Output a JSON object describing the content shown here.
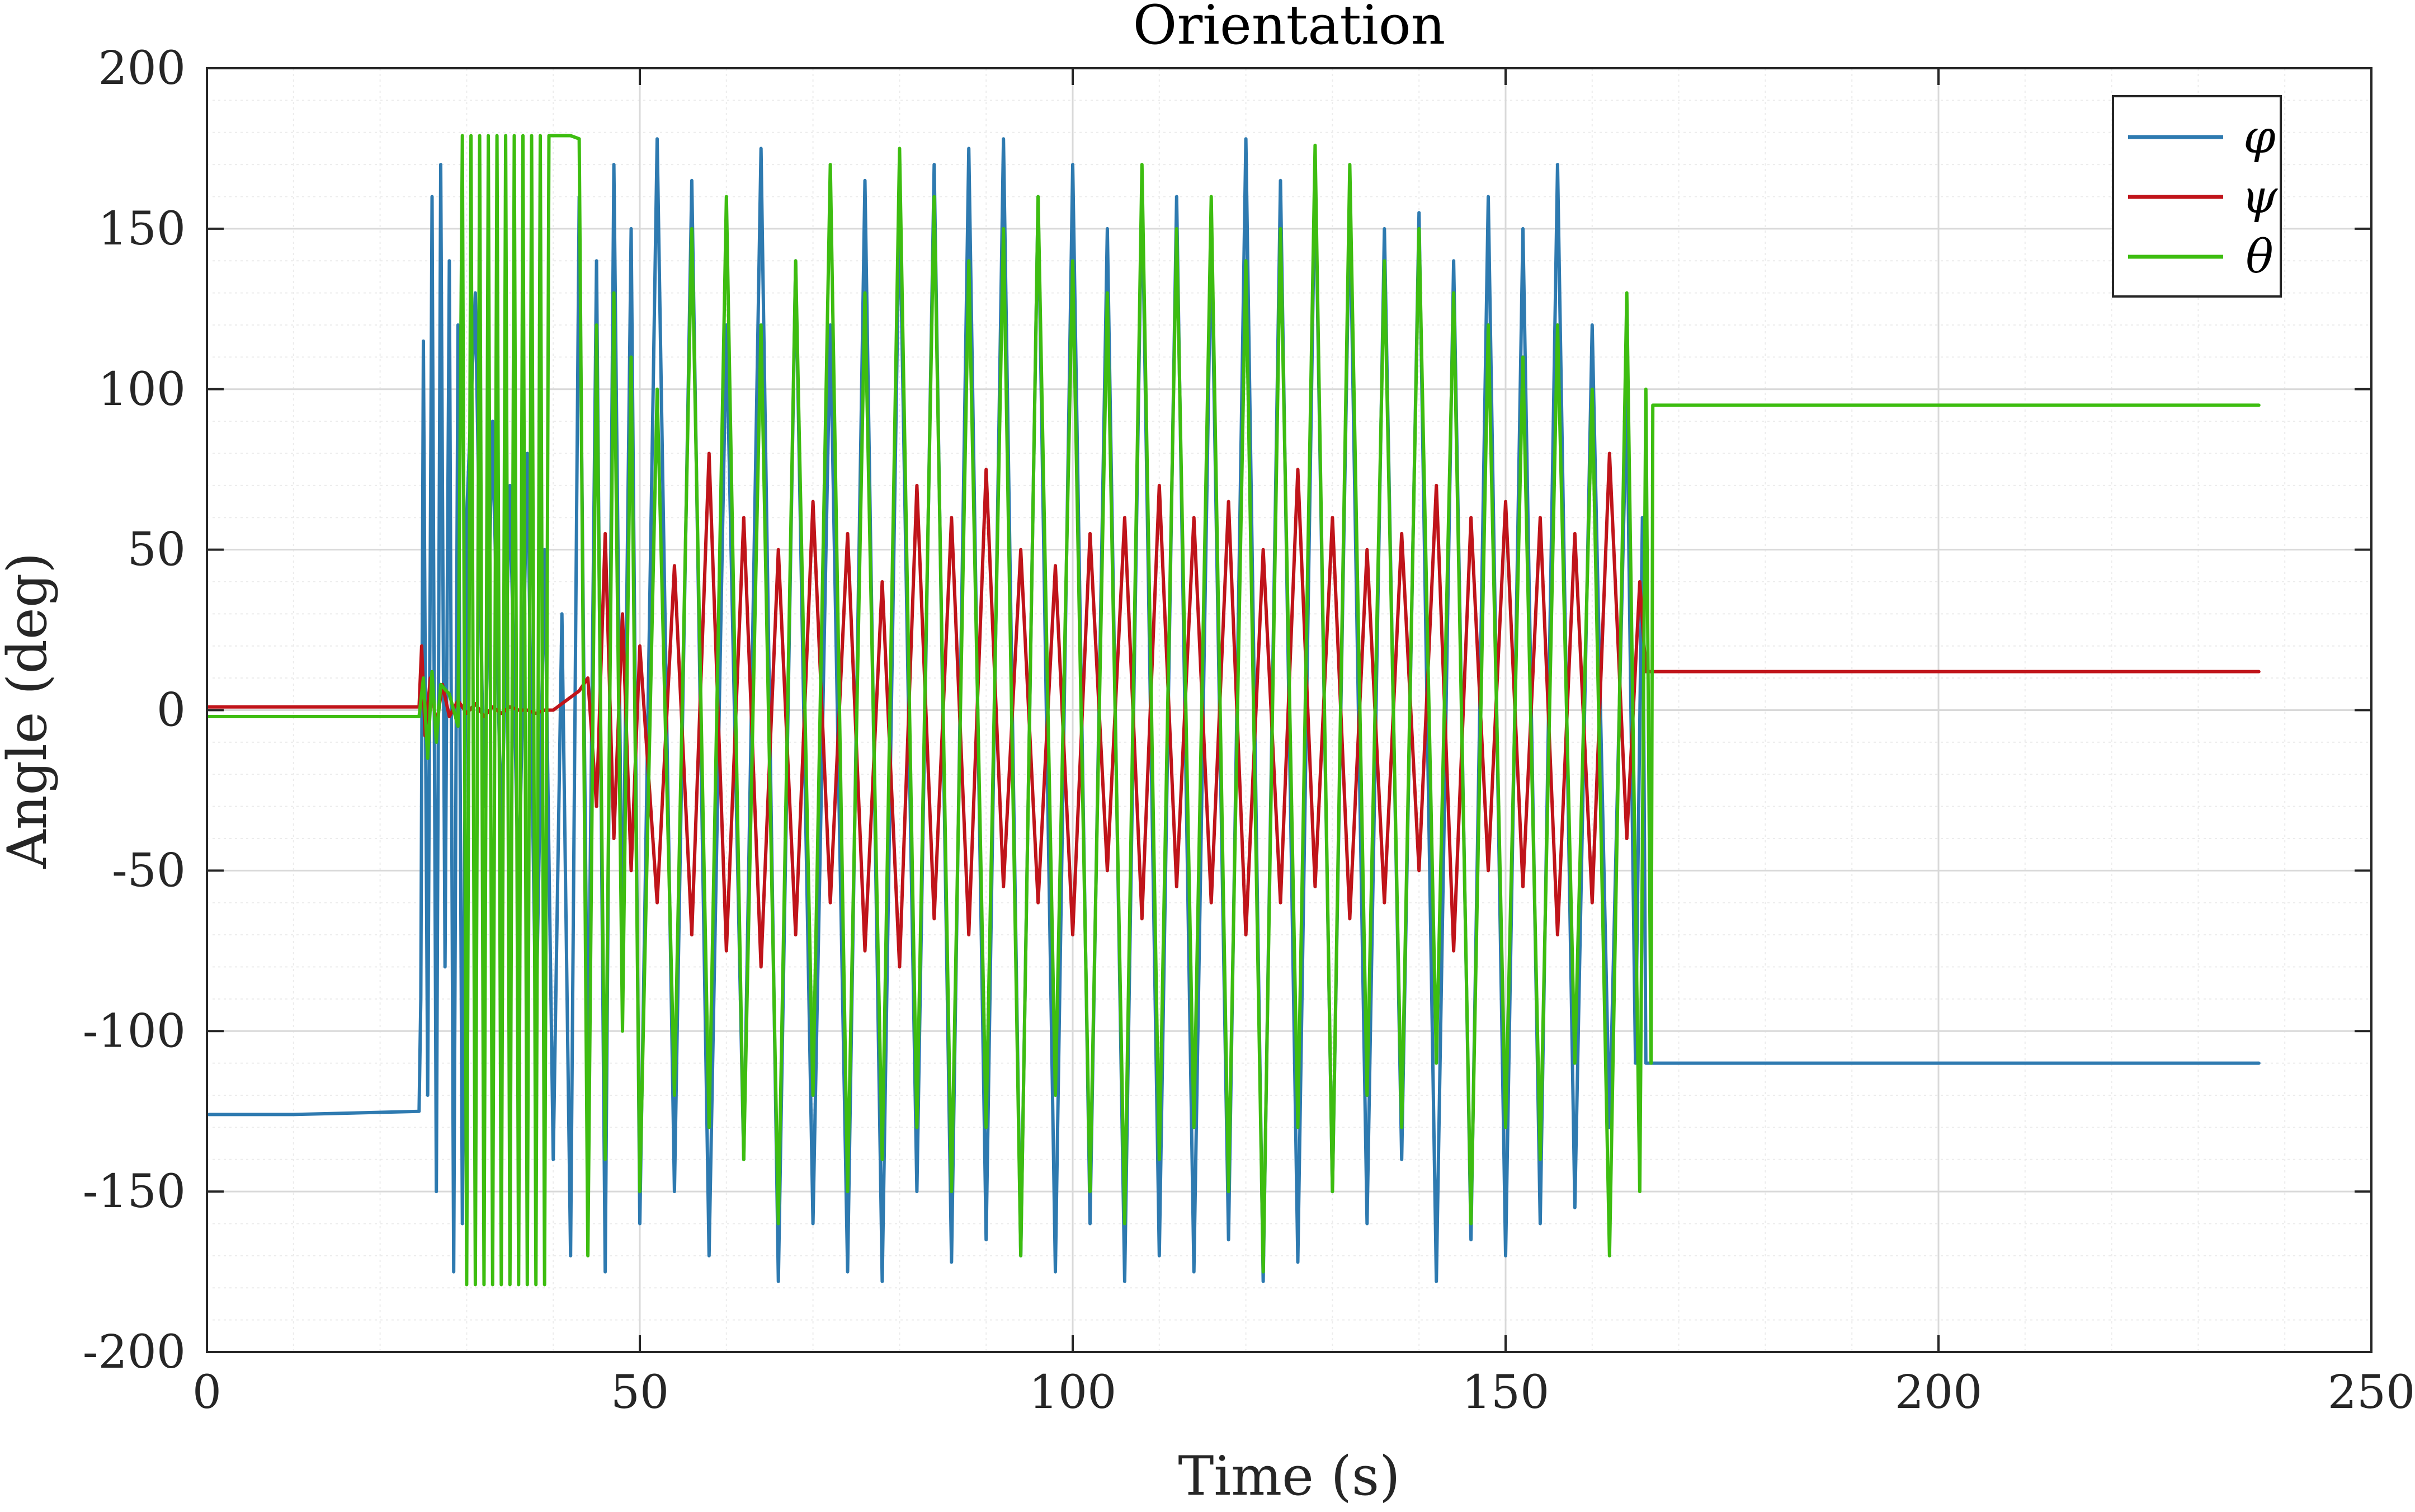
{
  "chart_data": {
    "type": "line",
    "title": "Orientation",
    "xlabel": "Time (s)",
    "ylabel": "Angle (deg)",
    "xlim": [
      0,
      250
    ],
    "ylim": [
      -200,
      200
    ],
    "xticks": [
      0,
      50,
      100,
      150,
      200,
      250
    ],
    "yticks": [
      -200,
      -150,
      -100,
      -50,
      0,
      50,
      100,
      150,
      200
    ],
    "xtick_labels": [
      "0",
      "50",
      "100",
      "150",
      "200",
      "250"
    ],
    "ytick_labels": [
      "-200",
      "-150",
      "-100",
      "-50",
      "0",
      "50",
      "100",
      "150",
      "200"
    ],
    "grid": true,
    "minor_grid": true,
    "legend_position": "top-right",
    "colors": {
      "phi": "#2e7ab0",
      "psi": "#c0141a",
      "theta": "#3dbd10",
      "axes": "#262626",
      "grid_major": "#d9d9d9",
      "grid_minor": "#ececec"
    },
    "series": [
      {
        "name": "φ",
        "color": "#2e7ab0",
        "x": [
          0,
          10,
          24.5,
          24.7,
          25,
          25.5,
          26,
          26.5,
          27,
          27.5,
          28,
          28.5,
          29,
          29.5,
          30,
          31,
          32,
          33,
          34,
          35,
          36,
          37,
          38,
          39,
          40,
          41,
          42,
          43,
          44,
          45,
          46,
          47,
          48,
          49,
          50,
          52,
          54,
          56,
          58,
          60,
          62,
          64,
          66,
          68,
          70,
          72,
          74,
          76,
          78,
          80,
          82,
          84,
          86,
          88,
          90,
          92,
          94,
          96,
          98,
          100,
          102,
          104,
          106,
          108,
          110,
          112,
          114,
          116,
          118,
          120,
          122,
          124,
          126,
          128,
          130,
          132,
          134,
          136,
          138,
          140,
          142,
          144,
          146,
          148,
          150,
          152,
          154,
          156,
          158,
          160,
          162,
          164,
          165,
          165.8,
          166.2,
          166.5,
          167,
          180,
          200,
          220,
          237
        ],
        "y": [
          -126,
          -126,
          -125,
          -90,
          115,
          -120,
          160,
          -150,
          170,
          -80,
          140,
          -175,
          120,
          -160,
          60,
          130,
          -30,
          90,
          -40,
          70,
          -60,
          80,
          -100,
          50,
          -140,
          30,
          -170,
          160,
          -120,
          140,
          -175,
          170,
          -80,
          150,
          -160,
          178,
          -150,
          165,
          -170,
          120,
          -140,
          175,
          -178,
          140,
          -160,
          120,
          -175,
          165,
          -178,
          160,
          -150,
          170,
          -172,
          175,
          -165,
          178,
          -170,
          160,
          -175,
          170,
          -160,
          150,
          -178,
          165,
          -170,
          160,
          -175,
          150,
          -165,
          178,
          -178,
          165,
          -172,
          170,
          -150,
          160,
          -160,
          150,
          -140,
          155,
          -178,
          140,
          -165,
          160,
          -170,
          150,
          -160,
          170,
          -155,
          120,
          -130,
          100,
          -110,
          60,
          -110,
          -110,
          -110,
          -110,
          -110,
          -110,
          -110
        ]
      },
      {
        "name": "ψ",
        "color": "#c0141a",
        "x": [
          0,
          10,
          24.5,
          24.8,
          25.2,
          25.8,
          26.5,
          27.2,
          28,
          29,
          30,
          31,
          32,
          33,
          34,
          35,
          36,
          37,
          38,
          39,
          40,
          41,
          42,
          43,
          44,
          45,
          46,
          47,
          48,
          49,
          50,
          52,
          54,
          56,
          58,
          60,
          62,
          64,
          66,
          68,
          70,
          72,
          74,
          76,
          78,
          80,
          82,
          84,
          86,
          88,
          90,
          92,
          94,
          96,
          98,
          100,
          102,
          104,
          106,
          108,
          110,
          112,
          114,
          116,
          118,
          120,
          122,
          124,
          126,
          128,
          130,
          132,
          134,
          136,
          138,
          140,
          142,
          144,
          146,
          148,
          150,
          152,
          154,
          156,
          158,
          160,
          162,
          164,
          165.5,
          166.2,
          167,
          180,
          200,
          220,
          237
        ],
        "y": [
          1,
          1,
          1,
          20,
          -8,
          10,
          -5,
          8,
          -2,
          3,
          -1,
          2,
          -2,
          1,
          -1,
          1,
          0,
          0,
          -1,
          0,
          0,
          2,
          4,
          6,
          10,
          -30,
          55,
          -40,
          30,
          -50,
          20,
          -60,
          45,
          -70,
          80,
          -75,
          60,
          -80,
          50,
          -70,
          65,
          -60,
          55,
          -75,
          40,
          -80,
          70,
          -65,
          60,
          -70,
          75,
          -55,
          50,
          -60,
          45,
          -70,
          55,
          -50,
          60,
          -65,
          70,
          -55,
          60,
          -60,
          65,
          -70,
          50,
          -60,
          75,
          -55,
          60,
          -65,
          50,
          -60,
          55,
          -50,
          70,
          -75,
          60,
          -50,
          65,
          -55,
          60,
          -70,
          55,
          -60,
          80,
          -40,
          40,
          12,
          12,
          12,
          12,
          12,
          12
        ]
      },
      {
        "name": "θ",
        "color": "#3dbd10",
        "x": [
          0,
          10,
          24.5,
          25,
          25.5,
          26,
          26.5,
          27,
          28,
          29,
          29.5,
          30,
          30.5,
          31,
          31.5,
          32,
          32.5,
          33,
          33.5,
          34,
          34.5,
          35,
          35.5,
          36,
          36.5,
          37,
          37.5,
          38,
          38.5,
          39,
          39.5,
          40,
          41,
          42,
          43,
          44,
          45,
          46,
          47,
          48,
          49,
          50,
          52,
          54,
          56,
          58,
          60,
          62,
          64,
          66,
          68,
          70,
          72,
          74,
          76,
          78,
          80,
          82,
          84,
          86,
          88,
          90,
          92,
          94,
          96,
          98,
          100,
          102,
          104,
          106,
          108,
          110,
          112,
          114,
          116,
          118,
          120,
          122,
          124,
          126,
          128,
          130,
          132,
          134,
          136,
          138,
          140,
          142,
          144,
          146,
          148,
          150,
          152,
          154,
          156,
          158,
          160,
          162,
          164,
          165.5,
          166.2,
          166.8,
          167,
          180,
          200,
          220,
          237
        ],
        "y": [
          -2,
          -2,
          -2,
          10,
          -15,
          12,
          -10,
          8,
          5,
          -5,
          179,
          -179,
          179,
          -179,
          179,
          -179,
          179,
          -179,
          179,
          -179,
          179,
          -179,
          179,
          -179,
          179,
          -179,
          179,
          -179,
          179,
          -179,
          179,
          179,
          179,
          179,
          178,
          -170,
          120,
          -140,
          130,
          -100,
          110,
          -150,
          100,
          -120,
          150,
          -130,
          160,
          -140,
          120,
          -160,
          140,
          -120,
          170,
          -150,
          130,
          -140,
          175,
          -130,
          160,
          -150,
          140,
          -130,
          150,
          -170,
          160,
          -120,
          140,
          -150,
          130,
          -160,
          170,
          -140,
          150,
          -130,
          160,
          -150,
          140,
          -175,
          150,
          -130,
          176,
          -150,
          170,
          -120,
          140,
          -130,
          150,
          -110,
          130,
          -160,
          120,
          -130,
          110,
          -140,
          120,
          -110,
          100,
          -170,
          130,
          -150,
          100,
          -110,
          95,
          95,
          95,
          95,
          95
        ]
      }
    ]
  }
}
